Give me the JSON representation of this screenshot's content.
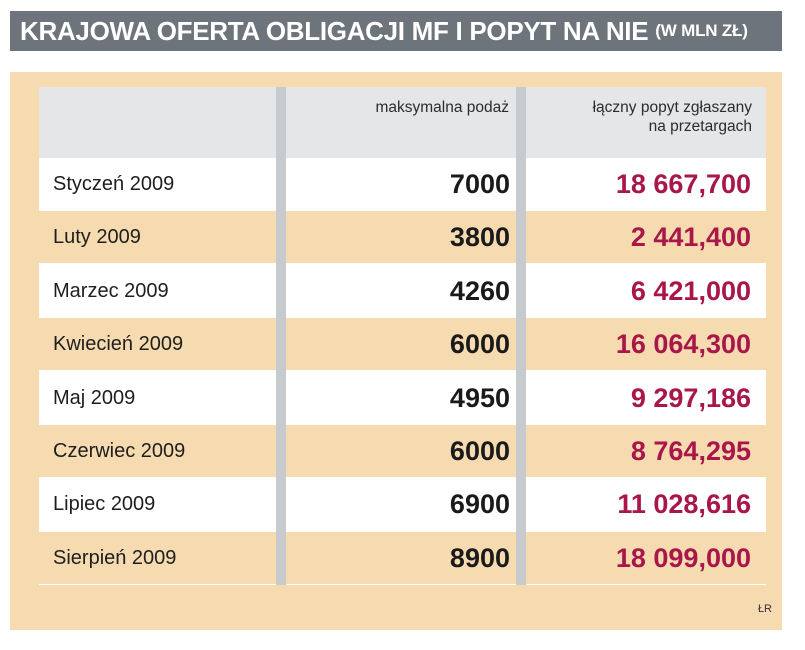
{
  "header": {
    "title": "KRAJOWA OFERTA OBLIGACJI MF I POPYT NA NIE",
    "unit": "(W MLN ZŁ)"
  },
  "columns": {
    "supply_label": "maksymalna podaż",
    "demand_label_line1": "łączny popyt zgłaszany",
    "demand_label_line2": "na przetargach"
  },
  "chart_data": {
    "type": "table",
    "title": "KRAJOWA OFERTA OBLIGACJI MF I POPYT NA NIE (W MLN ZŁ)",
    "columns": [
      "",
      "maksymalna podaż",
      "łączny popyt zgłaszany na przetargach"
    ],
    "rows": [
      {
        "month": "Styczeń 2009",
        "supply": "7000",
        "demand": "18 667,700"
      },
      {
        "month": "Luty 2009",
        "supply": "3800",
        "demand": "2 441,400"
      },
      {
        "month": "Marzec 2009",
        "supply": "4260",
        "demand": "6 421,000"
      },
      {
        "month": "Kwiecień 2009",
        "supply": "6000",
        "demand": "16 064,300"
      },
      {
        "month": "Maj 2009",
        "supply": "4950",
        "demand": "9 297,186"
      },
      {
        "month": "Czerwiec 2009",
        "supply": "6000",
        "demand": "8 764,295"
      },
      {
        "month": "Lipiec 2009",
        "supply": "6900",
        "demand": "11 028,616"
      },
      {
        "month": "Sierpień 2009",
        "supply": "8900",
        "demand": "18 099,000"
      }
    ]
  },
  "source": "ŁR",
  "colors": {
    "title_bg": "#6e747c",
    "panel_bg": "#f7dbb0",
    "demand_text": "#a8164a"
  }
}
